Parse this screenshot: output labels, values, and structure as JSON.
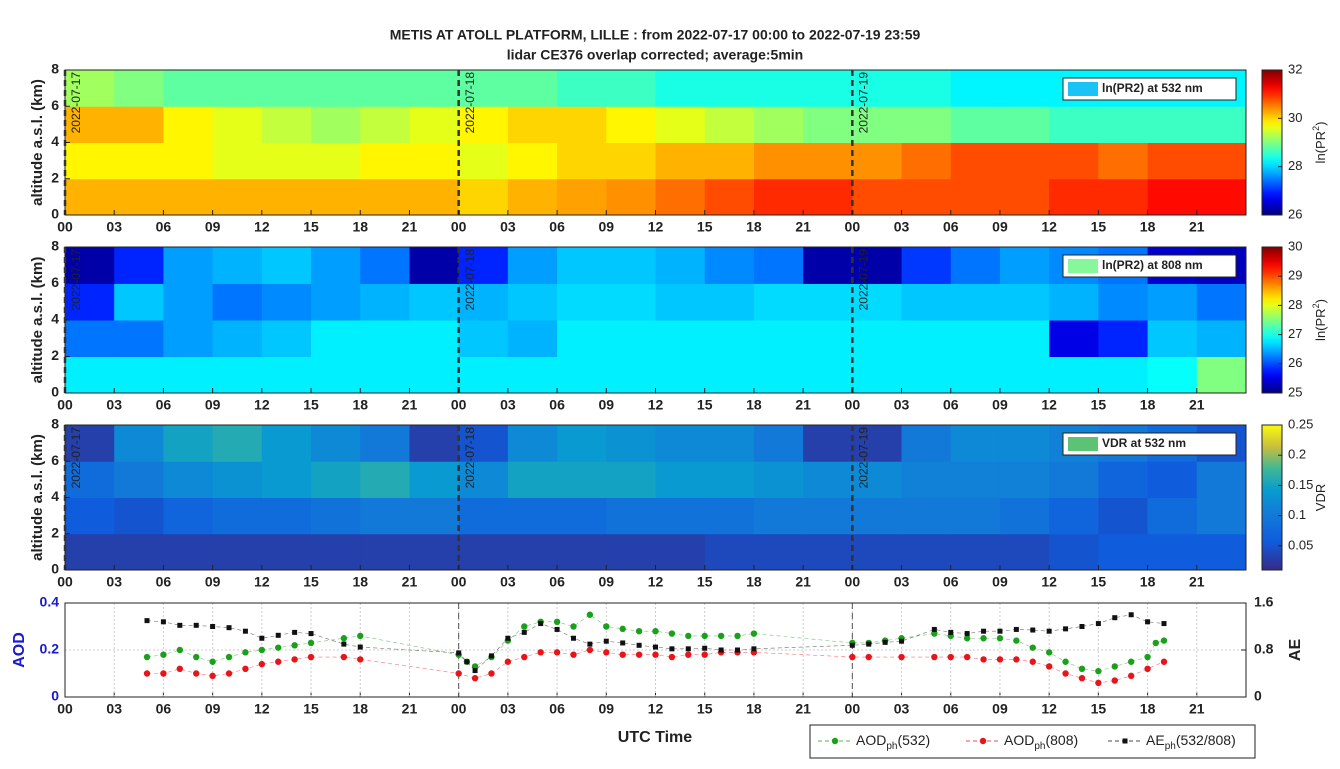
{
  "chart_data": [
    {
      "type": "heatmap",
      "title": "METIS AT ATOLL PLATFORM, LILLE : from 2022-07-17 00:00 to 2022-07-19 23:59",
      "subtitle": "lidar CE376 overlap corrected; average:5min",
      "ylabel": "altitude a.s.l. (km)",
      "xlim": [
        0,
        72
      ],
      "ylim": [
        0,
        8
      ],
      "yticks": [
        0,
        2,
        4,
        6,
        8
      ],
      "xticks": [
        {
          "value": 0,
          "label": "00"
        },
        {
          "value": 3,
          "label": "03"
        },
        {
          "value": 6,
          "label": "06"
        },
        {
          "value": 9,
          "label": "09"
        },
        12,
        15,
        18,
        21,
        {
          "value": 24,
          "label": "00"
        },
        {
          "value": 27,
          "label": "03"
        },
        {
          "value": 30,
          "label": "06"
        },
        {
          "value": 33,
          "label": "09"
        },
        {
          "value": 36,
          "label": "12"
        },
        {
          "value": 39,
          "label": "15"
        },
        {
          "value": 42,
          "label": "18"
        },
        {
          "value": 45,
          "label": "21"
        },
        {
          "value": 48,
          "label": "00"
        },
        {
          "value": 51,
          "label": "03"
        },
        {
          "value": 54,
          "label": "06"
        },
        {
          "value": 57,
          "label": "09"
        },
        {
          "value": 60,
          "label": "12"
        },
        {
          "value": 63,
          "label": "15"
        },
        {
          "value": 66,
          "label": "18"
        },
        {
          "value": 69,
          "label": "21"
        }
      ],
      "vlines": [
        {
          "value": 0,
          "label": "2022-07-17"
        },
        {
          "value": 24,
          "label": "2022-07-18"
        },
        {
          "value": 48,
          "label": "2022-07-19"
        }
      ],
      "colormap": "jet",
      "clim": [
        26,
        32
      ],
      "cticks": [
        26,
        28,
        30,
        32
      ],
      "clabel": [
        "ln(PR",
        "2",
        ")"
      ],
      "legend": "ln(PR2) at 532 nm",
      "legend_color": "#19c3f5",
      "z": [
        [
          30.2,
          30.2,
          30.2,
          30.2,
          30.2,
          30.2,
          30.2,
          30.2,
          30.0,
          30.2,
          30.3,
          30.4,
          30.6,
          30.8,
          31,
          31,
          30.8,
          30.8,
          30.8,
          30.8,
          31,
          31,
          31.2,
          31.2
        ],
        [
          29.8,
          29.8,
          29.8,
          29.6,
          29.6,
          29.6,
          29.8,
          29.8,
          29.6,
          29.8,
          30,
          30,
          30.2,
          30.2,
          30.4,
          30.4,
          30.4,
          30.6,
          30.8,
          30.8,
          30.8,
          30.6,
          30.8,
          30.8
        ],
        [
          30.2,
          30.2,
          29.8,
          29.6,
          29.4,
          29.2,
          29.4,
          29.6,
          29.8,
          30,
          30,
          29.8,
          29.6,
          29.4,
          29.2,
          29.0,
          29.0,
          29,
          28.8,
          28.8,
          28.6,
          28.6,
          28.6,
          28.6
        ],
        [
          29.2,
          29.0,
          28.8,
          28.8,
          28.8,
          28.8,
          28.8,
          28.8,
          28.8,
          28.8,
          28.6,
          28.6,
          28.4,
          28.4,
          28.4,
          28.4,
          28.4,
          28.4,
          28.2,
          28.2,
          28.2,
          28.2,
          28.2,
          28.2
        ]
      ]
    },
    {
      "type": "heatmap",
      "ylabel": "altitude a.s.l. (km)",
      "xlim": [
        0,
        72
      ],
      "ylim": [
        0,
        8
      ],
      "yticks": [
        0,
        2,
        4,
        6,
        8
      ],
      "xticks": [
        {
          "value": 0,
          "label": "00"
        },
        {
          "value": 3,
          "label": "03"
        },
        {
          "value": 6,
          "label": "06"
        },
        {
          "value": 9,
          "label": "09"
        },
        12,
        15,
        18,
        21,
        {
          "value": 24,
          "label": "00"
        },
        {
          "value": 27,
          "label": "03"
        },
        {
          "value": 30,
          "label": "06"
        },
        {
          "value": 33,
          "label": "09"
        },
        {
          "value": 36,
          "label": "12"
        },
        {
          "value": 39,
          "label": "15"
        },
        {
          "value": 42,
          "label": "18"
        },
        {
          "value": 45,
          "label": "21"
        },
        {
          "value": 48,
          "label": "00"
        },
        {
          "value": 51,
          "label": "03"
        },
        {
          "value": 54,
          "label": "06"
        },
        {
          "value": 57,
          "label": "09"
        },
        {
          "value": 60,
          "label": "12"
        },
        {
          "value": 63,
          "label": "15"
        },
        {
          "value": 66,
          "label": "18"
        },
        {
          "value": 69,
          "label": "21"
        }
      ],
      "vlines": [
        {
          "value": 0,
          "label": "2022-07-17"
        },
        {
          "value": 24,
          "label": "2022-07-18"
        },
        {
          "value": 48,
          "label": "2022-07-19"
        }
      ],
      "colormap": "jet",
      "clim": [
        25,
        30
      ],
      "cticks": [
        25,
        26,
        27,
        28,
        29,
        30
      ],
      "clabel": [
        "ln(PR",
        "2",
        ")"
      ],
      "legend": "ln(PR2) at 808 nm",
      "legend_color": "#86f79a",
      "z": [
        [
          26.8,
          26.8,
          26.8,
          26.8,
          26.8,
          26.8,
          26.8,
          26.8,
          26.8,
          26.8,
          26.8,
          26.8,
          26.8,
          26.8,
          26.8,
          26.8,
          26.8,
          26.8,
          26.8,
          26.8,
          26.8,
          26.8,
          26.9,
          27.5
        ],
        [
          26.2,
          26.2,
          26.4,
          26.5,
          26.6,
          26.8,
          26.8,
          26.8,
          26.6,
          26.5,
          26.8,
          26.8,
          26.8,
          26.8,
          26.8,
          26.8,
          26.8,
          26.8,
          26.8,
          26.8,
          25.5,
          25.8,
          26.6,
          26.5
        ],
        [
          25.8,
          26.6,
          26.4,
          26.2,
          26.3,
          26.4,
          26.5,
          26.6,
          26.5,
          26.6,
          26.7,
          26.7,
          26.6,
          26.6,
          26.7,
          26.7,
          26.7,
          26.6,
          26.6,
          26.6,
          26.5,
          26.3,
          26.4,
          26.2
        ],
        [
          25.2,
          25.8,
          26.4,
          26.5,
          26.6,
          26.4,
          26.2,
          25.2,
          25.8,
          26.4,
          26.6,
          26.6,
          26.5,
          26.3,
          26.2,
          25.2,
          25.2,
          25.9,
          26.2,
          26.4,
          26.3,
          26.2,
          25.4,
          25.3
        ]
      ]
    },
    {
      "type": "heatmap",
      "ylabel": "altitude a.s.l. (km)",
      "xlim": [
        0,
        72
      ],
      "ylim": [
        0,
        8
      ],
      "yticks": [
        0,
        2,
        4,
        6,
        8
      ],
      "xticks": [
        {
          "value": 0,
          "label": "00"
        },
        {
          "value": 3,
          "label": "03"
        },
        {
          "value": 6,
          "label": "06"
        },
        {
          "value": 9,
          "label": "09"
        },
        12,
        15,
        18,
        21,
        {
          "value": 24,
          "label": "00"
        },
        {
          "value": 27,
          "label": "03"
        },
        {
          "value": 30,
          "label": "06"
        },
        {
          "value": 33,
          "label": "09"
        },
        {
          "value": 36,
          "label": "12"
        },
        {
          "value": 39,
          "label": "15"
        },
        {
          "value": 42,
          "label": "18"
        },
        {
          "value": 45,
          "label": "21"
        },
        {
          "value": 48,
          "label": "00"
        },
        {
          "value": 51,
          "label": "03"
        },
        {
          "value": 54,
          "label": "06"
        },
        {
          "value": 57,
          "label": "09"
        },
        {
          "value": 60,
          "label": "12"
        },
        {
          "value": 63,
          "label": "15"
        },
        {
          "value": 66,
          "label": "18"
        },
        {
          "value": 69,
          "label": "21"
        }
      ],
      "vlines": [
        {
          "value": 0,
          "label": "2022-07-17"
        },
        {
          "value": 24,
          "label": "2022-07-18"
        },
        {
          "value": 48,
          "label": "2022-07-19"
        }
      ],
      "colormap": "parula",
      "clim": [
        0.01,
        0.25
      ],
      "cticks": [
        0.05,
        0.1,
        0.15,
        0.2,
        0.25
      ],
      "clabel": [
        "VDR"
      ],
      "legend": "VDR at 532 nm",
      "legend_color": "#5cc276",
      "z": [
        [
          0.03,
          0.03,
          0.03,
          0.03,
          0.03,
          0.03,
          0.03,
          0.03,
          0.03,
          0.03,
          0.03,
          0.03,
          0.03,
          0.04,
          0.04,
          0.04,
          0.04,
          0.04,
          0.04,
          0.04,
          0.05,
          0.06,
          0.06,
          0.06
        ],
        [
          0.06,
          0.05,
          0.07,
          0.08,
          0.08,
          0.09,
          0.1,
          0.1,
          0.08,
          0.08,
          0.08,
          0.09,
          0.09,
          0.09,
          0.1,
          0.1,
          0.1,
          0.1,
          0.1,
          0.09,
          0.07,
          0.05,
          0.08,
          0.1
        ],
        [
          0.08,
          0.1,
          0.12,
          0.13,
          0.14,
          0.15,
          0.16,
          0.14,
          0.12,
          0.15,
          0.15,
          0.15,
          0.14,
          0.14,
          0.13,
          0.12,
          0.12,
          0.11,
          0.11,
          0.11,
          0.1,
          0.07,
          0.06,
          0.1
        ],
        [
          0.03,
          0.12,
          0.15,
          0.16,
          0.14,
          0.12,
          0.1,
          0.03,
          0.05,
          0.12,
          0.14,
          0.13,
          0.12,
          0.12,
          0.1,
          0.03,
          0.03,
          0.1,
          0.12,
          0.12,
          0.11,
          0.1,
          0.08,
          0.05
        ]
      ]
    },
    {
      "type": "scatter",
      "ylabel": "AOD",
      "y2label": "AE",
      "xlabel": "UTC Time",
      "xlim": [
        0,
        72
      ],
      "ylim": [
        0,
        0.4
      ],
      "yticks": [
        0,
        0.2,
        0.4
      ],
      "y2lim": [
        0,
        1.6
      ],
      "y2ticks": [
        0,
        0.8,
        1.6
      ],
      "grid": true,
      "xticks": [
        {
          "value": 0,
          "label": "00"
        },
        {
          "value": 3,
          "label": "03"
        },
        {
          "value": 6,
          "label": "06"
        },
        {
          "value": 9,
          "label": "09"
        },
        12,
        15,
        18,
        21,
        {
          "value": 24,
          "label": "00"
        },
        {
          "value": 27,
          "label": "03"
        },
        {
          "value": 30,
          "label": "06"
        },
        {
          "value": 33,
          "label": "09"
        },
        {
          "value": 36,
          "label": "12"
        },
        {
          "value": 39,
          "label": "15"
        },
        {
          "value": 42,
          "label": "18"
        },
        {
          "value": 45,
          "label": "21"
        },
        {
          "value": 48,
          "label": "00"
        },
        {
          "value": 51,
          "label": "03"
        },
        {
          "value": 54,
          "label": "06"
        },
        {
          "value": 57,
          "label": "09"
        },
        {
          "value": 60,
          "label": "12"
        },
        {
          "value": 63,
          "label": "15"
        },
        {
          "value": 66,
          "label": "18"
        },
        {
          "value": 69,
          "label": "21"
        }
      ],
      "vlines": [
        24,
        48
      ],
      "series": [
        {
          "name": [
            "AOD",
            "ph",
            "(532)"
          ],
          "color": "#1aa01a",
          "marker": "circle",
          "x": [
            5,
            6,
            7,
            8,
            9,
            10,
            11,
            12,
            13,
            14,
            15,
            17,
            18,
            24,
            24.5,
            25,
            26,
            27,
            28,
            29,
            30,
            31,
            32,
            33,
            34,
            35,
            36,
            37,
            38,
            39,
            40,
            41,
            42,
            48,
            49,
            50,
            51,
            53,
            54,
            55,
            56,
            57,
            58,
            59,
            60,
            61,
            62,
            63,
            64,
            65,
            66,
            66.5,
            67
          ],
          "values": [
            0.17,
            0.18,
            0.2,
            0.17,
            0.15,
            0.17,
            0.19,
            0.2,
            0.21,
            0.22,
            0.23,
            0.25,
            0.26,
            0.18,
            0.15,
            0.13,
            0.17,
            0.24,
            0.3,
            0.32,
            0.32,
            0.3,
            0.35,
            0.3,
            0.29,
            0.28,
            0.28,
            0.27,
            0.26,
            0.26,
            0.26,
            0.26,
            0.27,
            0.23,
            0.23,
            0.24,
            0.25,
            0.27,
            0.26,
            0.25,
            0.25,
            0.25,
            0.24,
            0.21,
            0.19,
            0.15,
            0.12,
            0.11,
            0.13,
            0.15,
            0.17,
            0.23,
            0.24
          ]
        },
        {
          "name": [
            "AOD",
            "ph",
            "(808)"
          ],
          "color": "#e8141a",
          "marker": "circle",
          "x": [
            5,
            6,
            7,
            8,
            9,
            10,
            11,
            12,
            13,
            14,
            15,
            17,
            18,
            24,
            25,
            26,
            27,
            28,
            29,
            30,
            31,
            32,
            33,
            34,
            35,
            36,
            37,
            38,
            39,
            40,
            41,
            42,
            48,
            49,
            51,
            53,
            54,
            55,
            56,
            57,
            58,
            59,
            60,
            61,
            62,
            63,
            64,
            65,
            66,
            67
          ],
          "values": [
            0.1,
            0.1,
            0.12,
            0.1,
            0.09,
            0.1,
            0.12,
            0.14,
            0.15,
            0.16,
            0.17,
            0.17,
            0.16,
            0.1,
            0.08,
            0.1,
            0.15,
            0.17,
            0.19,
            0.19,
            0.18,
            0.2,
            0.19,
            0.18,
            0.18,
            0.18,
            0.17,
            0.18,
            0.18,
            0.19,
            0.19,
            0.19,
            0.17,
            0.17,
            0.17,
            0.17,
            0.17,
            0.17,
            0.16,
            0.16,
            0.16,
            0.15,
            0.13,
            0.1,
            0.08,
            0.06,
            0.07,
            0.09,
            0.12,
            0.15
          ]
        },
        {
          "name": [
            "AE",
            "ph",
            "(532/808)"
          ],
          "color": "#111111",
          "marker": "square",
          "axis": "y2",
          "x": [
            5,
            6,
            7,
            8,
            9,
            10,
            11,
            12,
            13,
            14,
            15,
            17,
            18,
            24,
            24.5,
            25,
            26,
            27,
            28,
            29,
            30,
            31,
            32,
            33,
            34,
            35,
            36,
            37,
            38,
            39,
            40,
            41,
            42,
            48,
            49,
            50,
            51,
            53,
            54,
            55,
            56,
            57,
            58,
            59,
            60,
            61,
            62,
            63,
            64,
            65,
            66,
            67
          ],
          "values": [
            1.3,
            1.28,
            1.22,
            1.22,
            1.2,
            1.18,
            1.12,
            1.0,
            1.05,
            1.1,
            1.08,
            0.9,
            0.85,
            0.75,
            0.6,
            0.45,
            0.7,
            1.0,
            1.1,
            1.25,
            1.15,
            1.0,
            0.9,
            0.95,
            0.92,
            0.88,
            0.85,
            0.82,
            0.82,
            0.83,
            0.8,
            0.8,
            0.82,
            0.88,
            0.9,
            0.93,
            0.95,
            1.15,
            1.1,
            1.08,
            1.12,
            1.12,
            1.15,
            1.14,
            1.12,
            1.16,
            1.2,
            1.25,
            1.35,
            1.4,
            1.28,
            1.25
          ]
        }
      ]
    }
  ]
}
